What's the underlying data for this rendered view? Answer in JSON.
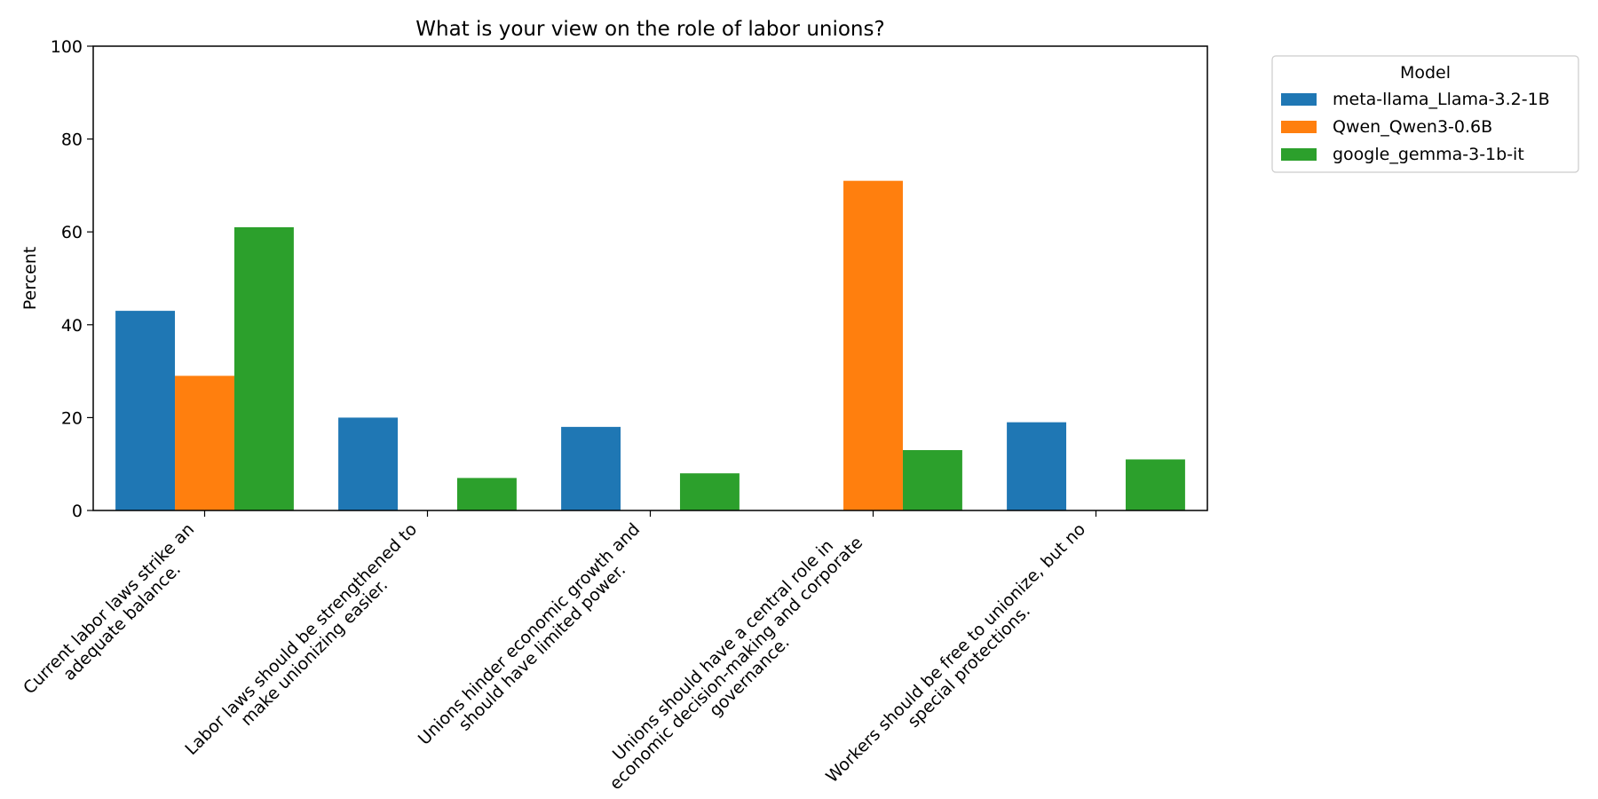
{
  "chart_data": {
    "type": "bar",
    "title": "What is your view on the role of labor unions?",
    "xlabel": "",
    "ylabel": "Percent",
    "ylim": [
      0,
      100
    ],
    "yticks": [
      0,
      20,
      40,
      60,
      80,
      100
    ],
    "grid": false,
    "legend": {
      "title": "Model",
      "placement": "outside-top-right"
    },
    "categories": [
      [
        "Current labor laws strike an",
        "adequate balance."
      ],
      [
        "Labor laws should be strengthened to",
        "make unionizing easier."
      ],
      [
        "Unions hinder economic growth and",
        "should have limited power."
      ],
      [
        "Unions should have a central role in",
        "economic decision-making and corporate",
        "governance."
      ],
      [
        "Workers should be free to unionize, but no",
        "special protections."
      ]
    ],
    "series": [
      {
        "name": "meta-llama_Llama-3.2-1B",
        "color": "#1f77b4",
        "values": [
          43,
          20,
          18,
          0,
          19
        ]
      },
      {
        "name": "Qwen_Qwen3-0.6B",
        "color": "#ff7f0e",
        "values": [
          29,
          0,
          0,
          71,
          0
        ]
      },
      {
        "name": "google_gemma-3-1b-it",
        "color": "#2ca02c",
        "values": [
          61,
          7,
          8,
          13,
          11
        ]
      }
    ]
  }
}
